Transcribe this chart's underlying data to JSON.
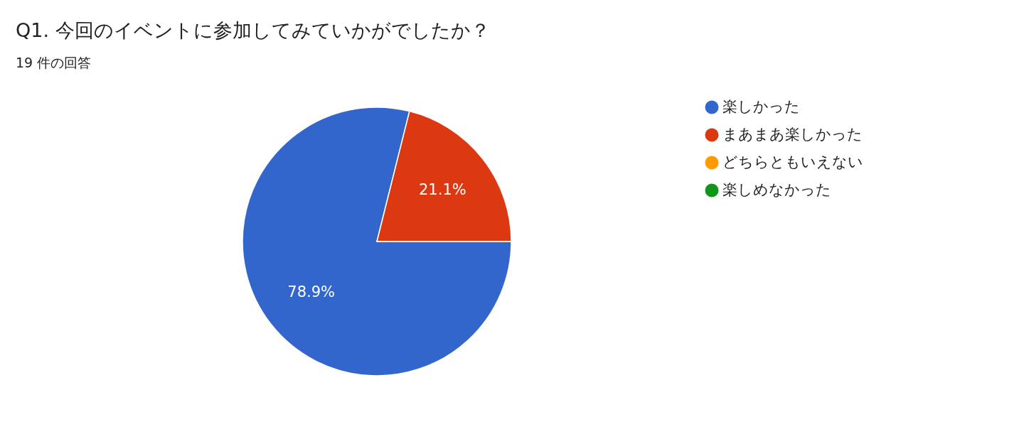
{
  "chart_data": {
    "type": "pie",
    "title": "Q1.  今回のイベントに参加してみていかがでしたか？",
    "subtitle": "19 件の回答",
    "categories": [
      "楽しかった",
      "まあまあ楽しかった",
      "どちらともいえない",
      "楽しめなかった"
    ],
    "values": [
      78.9,
      21.1,
      0,
      0
    ],
    "colors": [
      "#3366cc",
      "#dc3912",
      "#ff9900",
      "#109618"
    ],
    "value_labels": [
      "78.9%",
      "21.1%",
      null,
      null
    ],
    "legend": "right"
  }
}
